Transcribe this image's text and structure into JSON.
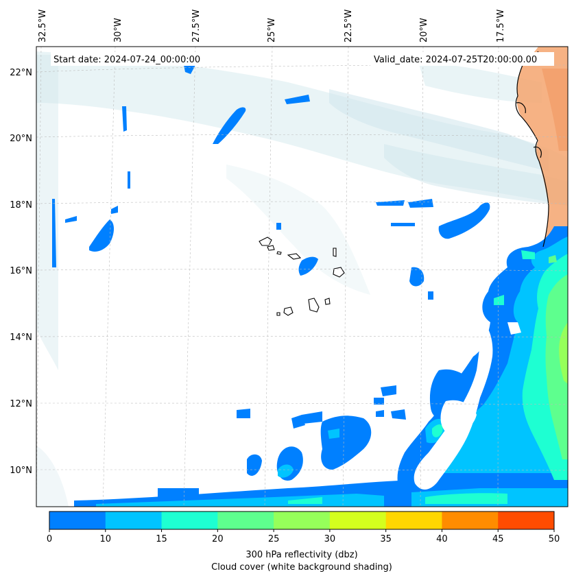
{
  "header": {
    "start_date": "Start date: 2024-07-24_00:00:00",
    "valid_date": "Valid_date: 2024-07-25T20:00:00.00"
  },
  "axes": {
    "longitudes": [
      "32.5°W",
      "30°W",
      "27.5°W",
      "25°W",
      "22.5°W",
      "20°W",
      "17.5°W"
    ],
    "latitudes": [
      "22°N",
      "20°N",
      "18°N",
      "16°N",
      "14°N",
      "12°N",
      "10°N"
    ]
  },
  "colorbar": {
    "ticks": [
      "0",
      "10",
      "15",
      "20",
      "25",
      "30",
      "35",
      "40",
      "45",
      "50"
    ],
    "colors": [
      "#0080ff",
      "#00c4ff",
      "#1effd2",
      "#5eff8e",
      "#96ff5a",
      "#d4ff1e",
      "#ffd600",
      "#ff8c00",
      "#ff4c00"
    ],
    "label_line1": "300 hPa reflectivity (dbz)",
    "label_line2": "Cloud cover (white background shading)"
  },
  "colors": {
    "land": "#f5a56e",
    "cloud": "#cfe6ec",
    "coast": "#000000",
    "grid": "#bbbbbb"
  }
}
